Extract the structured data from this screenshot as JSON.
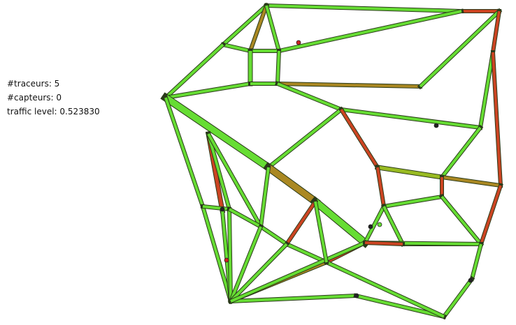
{
  "stats": {
    "traceurs": "#traceurs: 5",
    "capteurs": "#capteurs: 0",
    "traffic_level": "traffic level: 0.523830"
  }
}
